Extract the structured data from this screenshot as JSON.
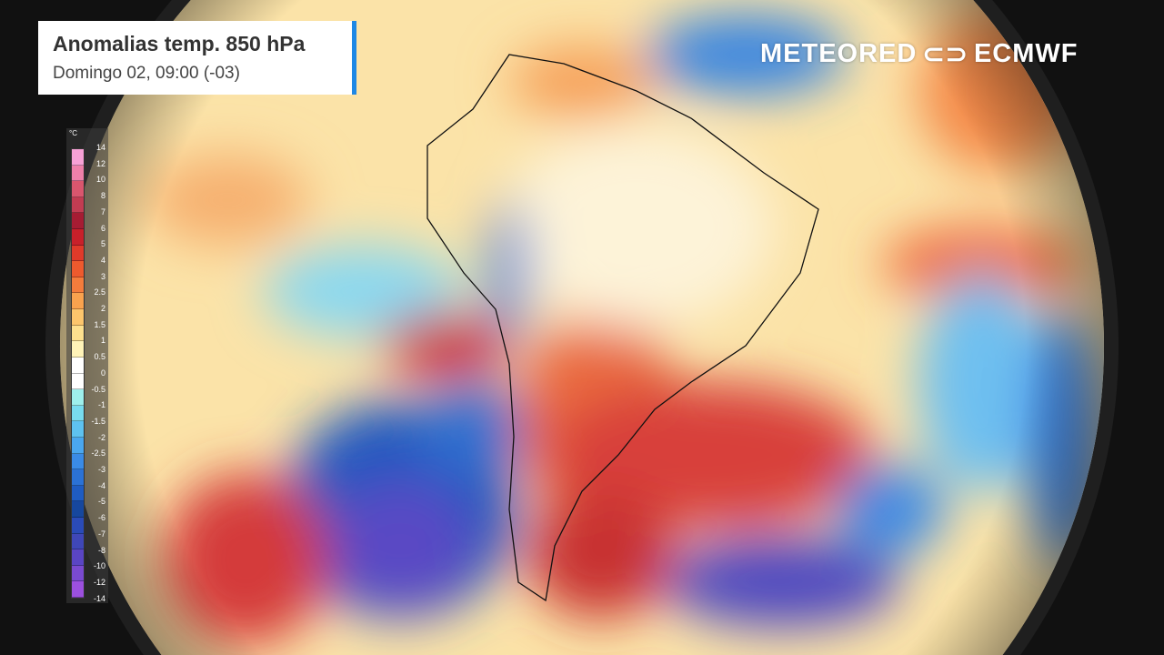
{
  "header": {
    "title": "Anomalias temp. 850 hPa",
    "subtitle": "Domingo 02, 09:00 (-03)"
  },
  "logos": {
    "left": "METEORED",
    "right": "ECMWF"
  },
  "legend": {
    "unit": "°C",
    "labels": [
      "14",
      "12",
      "10",
      "8",
      "7",
      "6",
      "5",
      "4",
      "3",
      "2.5",
      "2",
      "1.5",
      "1",
      "0.5",
      "0",
      "-0.5",
      "-1",
      "-1.5",
      "-2",
      "-2.5",
      "-3",
      "-4",
      "-5",
      "-6",
      "-7",
      "-8",
      "-10",
      "-12",
      "-14"
    ],
    "colors": [
      "#f7a1d6",
      "#ee80aa",
      "#d9566e",
      "#c23c52",
      "#a61c33",
      "#c8202a",
      "#e03a2a",
      "#ee5a2e",
      "#f47c3c",
      "#f9a24e",
      "#fcc56c",
      "#fde08e",
      "#fff3b8",
      "#ffffff",
      "#ffffff",
      "#9ef0ec",
      "#78dcef",
      "#5ec2f0",
      "#4aa7ef",
      "#3a8be6",
      "#2b72d6",
      "#1f5cc2",
      "#16479e",
      "#2a4bb8",
      "#3f47b8",
      "#5a45c4",
      "#7a4ad0",
      "#9c50de",
      "#b659e6"
    ]
  }
}
